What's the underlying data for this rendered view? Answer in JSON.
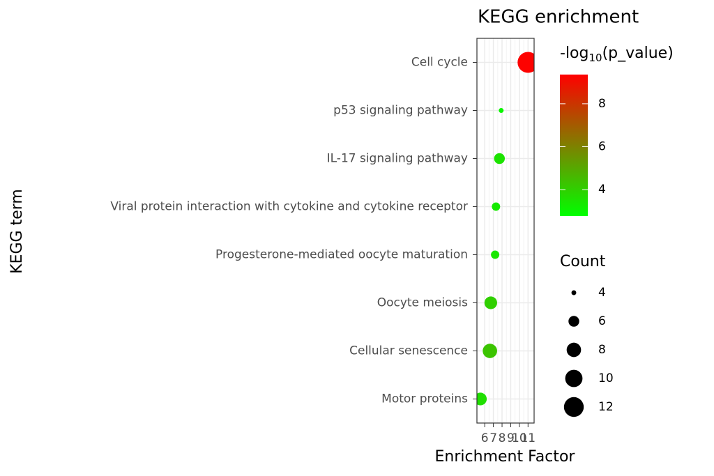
{
  "chart_data": {
    "type": "dotplot",
    "title": "KEGG enrichment",
    "x_label": "Enrichment Factor",
    "y_label": "KEGG term",
    "categories": [
      "Cell cycle",
      "p53 signaling pathway",
      "IL-17 signaling pathway",
      "Viral protein interaction with cytokine and cytokine receptor",
      "Progesterone-mediated oocyte maturation",
      "Oocyte meiosis",
      "Cellular senescence",
      "Motor proteins"
    ],
    "values": [
      11,
      7.9,
      7.7,
      7.3,
      7.2,
      6.7,
      6.6,
      5.5
    ],
    "size": [
      13,
      4,
      6,
      5,
      5,
      7,
      8,
      7
    ],
    "color_values": [
      9.3,
      3.0,
      3.5,
      3.3,
      3.4,
      4.0,
      4.3,
      3.6
    ],
    "xlim": [
      5.1,
      11.7
    ],
    "xticks": [
      6,
      7,
      8,
      9,
      10,
      11
    ],
    "grid": true,
    "color_legend": {
      "title_parts": [
        "-log",
        "10",
        "(p_value)"
      ],
      "lim": [
        2.77,
        9.36
      ],
      "ticks": [
        4,
        6,
        8
      ],
      "colors": [
        "#00ff00",
        "#ff0000"
      ]
    },
    "size_legend": {
      "title": "Count",
      "values": [
        4,
        6,
        8,
        10,
        12
      ]
    }
  }
}
